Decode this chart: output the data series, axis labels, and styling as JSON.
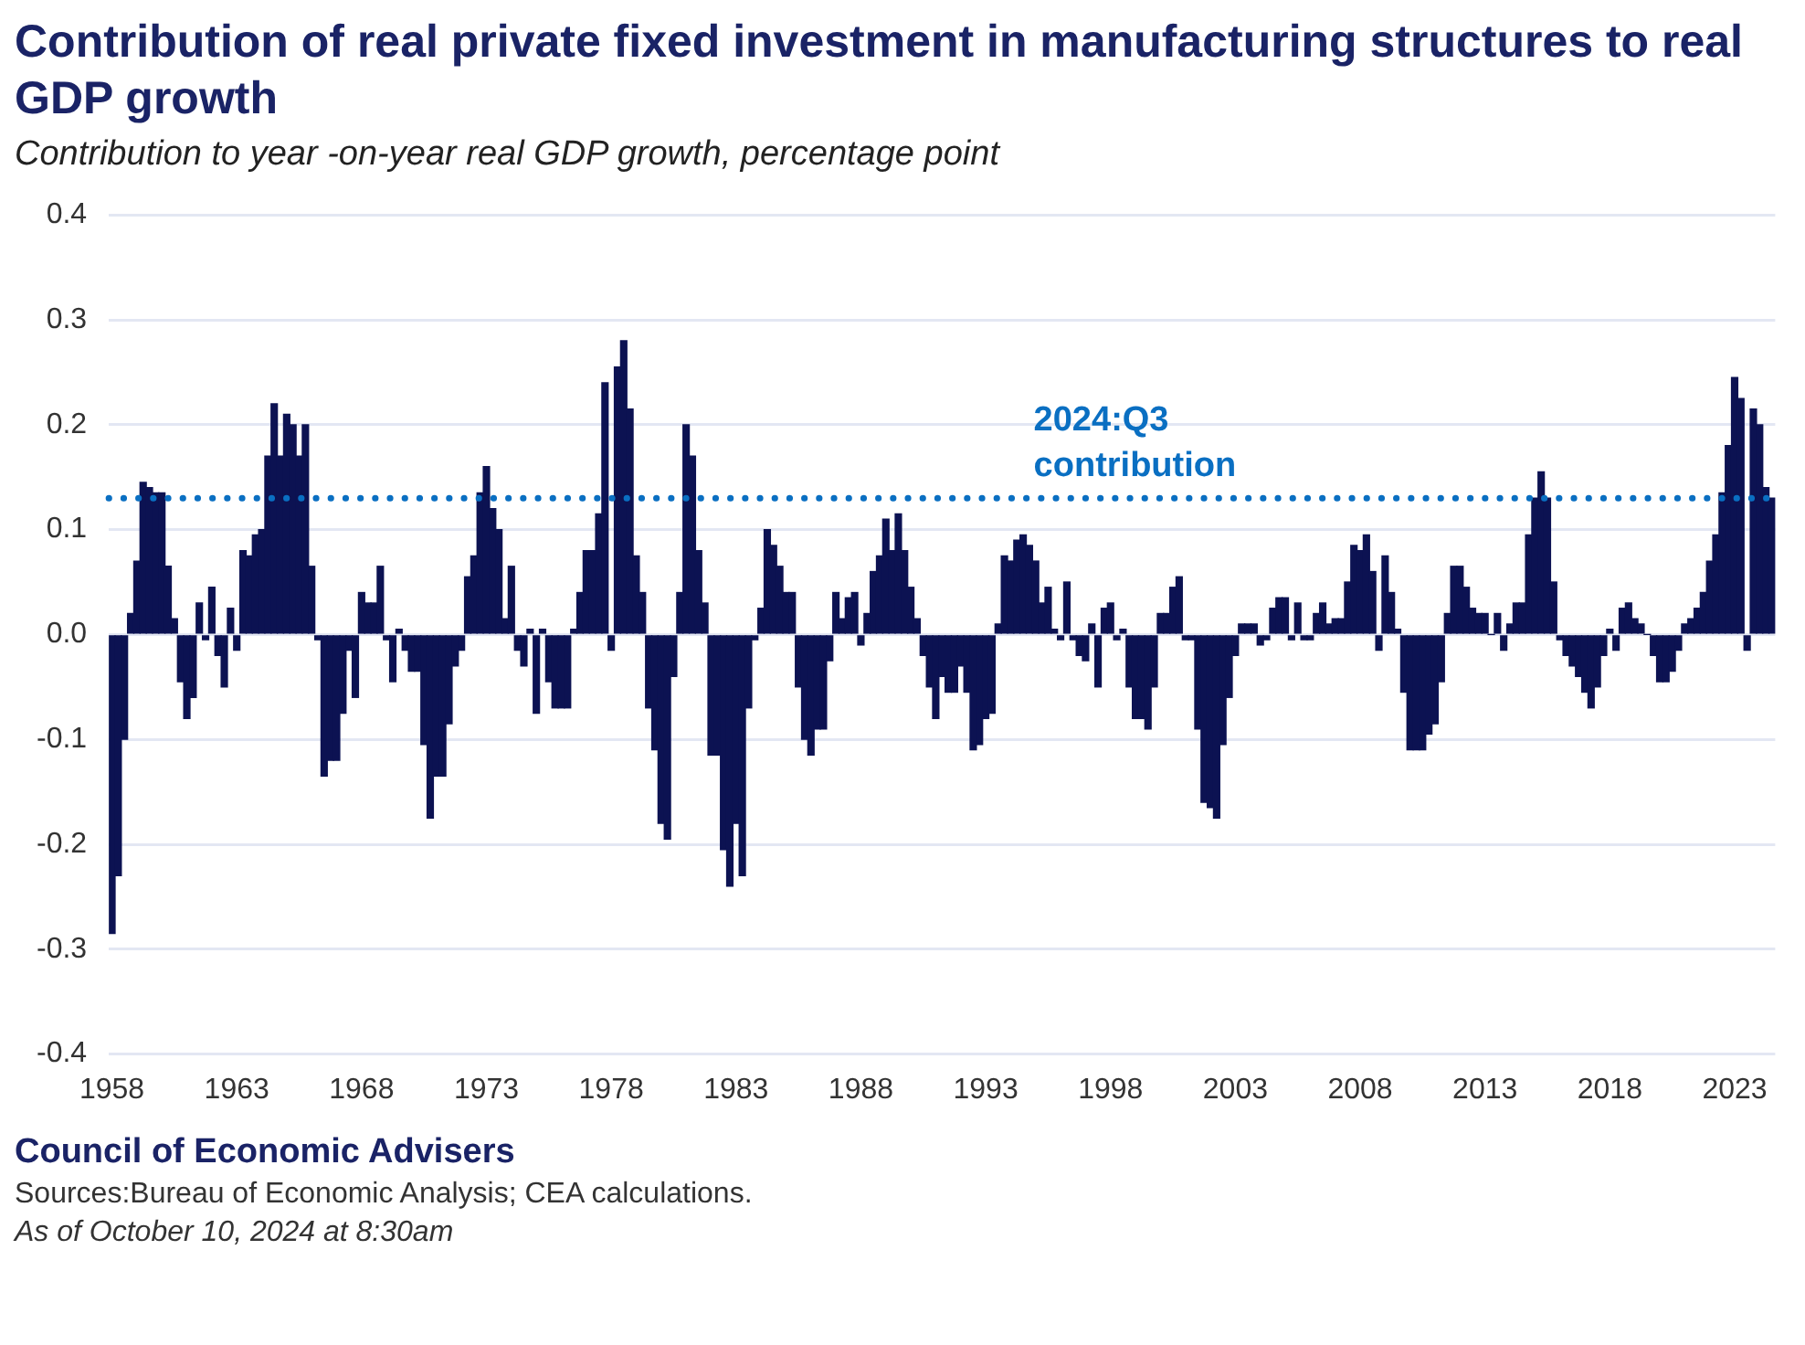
{
  "chart_data": {
    "type": "bar",
    "title": "Contribution of real private fixed investment in manufacturing structures to real GDP growth",
    "subtitle": "Contribution to year -on-year real GDP growth, percentage point",
    "categories": [
      "1958",
      null,
      null,
      null,
      null,
      null,
      null,
      null,
      null,
      null,
      null,
      null,
      null,
      null,
      null,
      null,
      null,
      null,
      null,
      null,
      "1963",
      null,
      null,
      null,
      null,
      null,
      null,
      null,
      null,
      null,
      null,
      null,
      null,
      null,
      null,
      null,
      null,
      null,
      null,
      null,
      "1968",
      null,
      null,
      null,
      null,
      null,
      null,
      null,
      null,
      null,
      null,
      null,
      null,
      null,
      null,
      null,
      null,
      null,
      null,
      null,
      "1973",
      null,
      null,
      null,
      null,
      null,
      null,
      null,
      null,
      null,
      null,
      null,
      null,
      null,
      null,
      null,
      null,
      null,
      null,
      null,
      "1978",
      null,
      null,
      null,
      null,
      null,
      null,
      null,
      null,
      null,
      null,
      null,
      null,
      null,
      null,
      null,
      null,
      null,
      null,
      null,
      "1983",
      null,
      null,
      null,
      null,
      null,
      null,
      null,
      null,
      null,
      null,
      null,
      null,
      null,
      null,
      null,
      null,
      null,
      null,
      null,
      "1988",
      null,
      null,
      null,
      null,
      null,
      null,
      null,
      null,
      null,
      null,
      null,
      null,
      null,
      null,
      null,
      null,
      null,
      null,
      null,
      "1993",
      null,
      null,
      null,
      null,
      null,
      null,
      null,
      null,
      null,
      null,
      null,
      null,
      null,
      null,
      null,
      null,
      null,
      null,
      null,
      "1998",
      null,
      null,
      null,
      null,
      null,
      null,
      null,
      null,
      null,
      null,
      null,
      null,
      null,
      null,
      null,
      null,
      null,
      null,
      null,
      "2003",
      null,
      null,
      null,
      null,
      null,
      null,
      null,
      null,
      null,
      null,
      null,
      null,
      null,
      null,
      null,
      null,
      null,
      null,
      null,
      "2008",
      null,
      null,
      null,
      null,
      null,
      null,
      null,
      null,
      null,
      null,
      null,
      null,
      null,
      null,
      null,
      null,
      null,
      null,
      null,
      "2013",
      null,
      null,
      null,
      null,
      null,
      null,
      null,
      null,
      null,
      null,
      null,
      null,
      null,
      null,
      null,
      null,
      null,
      null,
      null,
      "2018",
      null,
      null,
      null,
      null,
      null,
      null,
      null,
      null,
      null,
      null,
      null,
      null,
      null,
      null,
      null,
      null,
      null,
      null,
      null,
      "2023",
      null,
      null,
      null,
      null,
      null,
      null
    ],
    "values": [
      -0.285,
      -0.23,
      -0.1,
      0.02,
      0.07,
      0.145,
      0.14,
      0.135,
      0.135,
      0.065,
      0.015,
      -0.045,
      -0.08,
      -0.06,
      0.03,
      -0.005,
      0.045,
      -0.02,
      -0.05,
      0.025,
      -0.015,
      0.08,
      0.075,
      0.095,
      0.1,
      0.17,
      0.22,
      0.17,
      0.21,
      0.2,
      0.17,
      0.2,
      0.065,
      -0.005,
      -0.135,
      -0.12,
      -0.12,
      -0.075,
      -0.015,
      -0.06,
      0.04,
      0.03,
      0.03,
      0.065,
      -0.005,
      -0.045,
      0.005,
      -0.015,
      -0.035,
      -0.035,
      -0.105,
      -0.175,
      -0.135,
      -0.135,
      -0.085,
      -0.03,
      -0.015,
      0.055,
      0.075,
      0.135,
      0.16,
      0.12,
      0.1,
      0.015,
      0.065,
      -0.015,
      -0.03,
      0.005,
      -0.075,
      0.005,
      -0.045,
      -0.07,
      -0.07,
      -0.07,
      0.005,
      0.04,
      0.08,
      0.08,
      0.115,
      0.24,
      -0.015,
      0.255,
      0.28,
      0.215,
      0.075,
      0.04,
      -0.07,
      -0.11,
      -0.18,
      -0.195,
      -0.04,
      0.04,
      0.2,
      0.17,
      0.08,
      0.03,
      -0.115,
      -0.115,
      -0.205,
      -0.24,
      -0.18,
      -0.23,
      -0.07,
      -0.005,
      0.025,
      0.1,
      0.085,
      0.065,
      0.04,
      0.04,
      -0.05,
      -0.1,
      -0.115,
      -0.09,
      -0.09,
      -0.025,
      0.04,
      0.015,
      0.035,
      0.04,
      -0.01,
      0.02,
      0.06,
      0.075,
      0.11,
      0.08,
      0.115,
      0.08,
      0.045,
      0.015,
      -0.02,
      -0.05,
      -0.08,
      -0.04,
      -0.055,
      -0.055,
      -0.03,
      -0.055,
      -0.11,
      -0.105,
      -0.08,
      -0.075,
      0.01,
      0.075,
      0.07,
      0.09,
      0.095,
      0.085,
      0.07,
      0.03,
      0.045,
      0.005,
      -0.005,
      0.05,
      -0.005,
      -0.02,
      -0.025,
      0.01,
      -0.05,
      0.025,
      0.03,
      -0.005,
      0.005,
      -0.05,
      -0.08,
      -0.08,
      -0.09,
      -0.05,
      0.02,
      0.02,
      0.045,
      0.055,
      -0.005,
      -0.005,
      -0.09,
      -0.16,
      -0.165,
      -0.175,
      -0.105,
      -0.06,
      -0.02,
      0.01,
      0.01,
      0.01,
      -0.01,
      -0.005,
      0.025,
      0.035,
      0.035,
      -0.005,
      0.03,
      -0.005,
      -0.005,
      0.02,
      0.03,
      0.01,
      0.015,
      0.015,
      0.05,
      0.085,
      0.08,
      0.095,
      0.06,
      -0.015,
      0.075,
      0.04,
      0.005,
      -0.055,
      -0.11,
      -0.11,
      -0.11,
      -0.095,
      -0.085,
      -0.045,
      0.02,
      0.065,
      0.065,
      0.045,
      0.025,
      0.02,
      0.02,
      0.0,
      0.02,
      -0.015,
      0.01,
      0.03,
      0.03,
      0.095,
      0.13,
      0.155,
      0.13,
      0.05,
      -0.005,
      -0.02,
      -0.03,
      -0.04,
      -0.055,
      -0.07,
      -0.05,
      -0.02,
      0.005,
      -0.015,
      0.025,
      0.03,
      0.015,
      0.01,
      0.0,
      -0.02,
      -0.045,
      -0.045,
      -0.035,
      -0.015,
      0.01,
      0.015,
      0.025,
      0.04,
      0.07,
      0.095,
      0.135,
      0.18,
      0.245,
      0.225,
      -0.015,
      0.215,
      0.2,
      0.14,
      0.13
    ],
    "color": "#0c1252",
    "ylim": [
      -0.4,
      0.4
    ],
    "yticks": [
      -0.4,
      -0.3,
      -0.2,
      -0.1,
      {
        "value": 0,
        "label": "0.0"
      },
      0.1,
      0.2,
      0.3,
      0.4
    ],
    "grid": "y",
    "ref_lines": [
      {
        "axis": "y",
        "value": 0.13,
        "label": "2024:Q3 contribution",
        "color": "#0a6fc2",
        "line_style": "dotted"
      }
    ],
    "annotations": [
      "Council of Economic Advisers",
      "Sources:Bureau of Economic Analysis; CEA calculations.",
      "As of October 10, 2024 at 8:30am"
    ]
  }
}
